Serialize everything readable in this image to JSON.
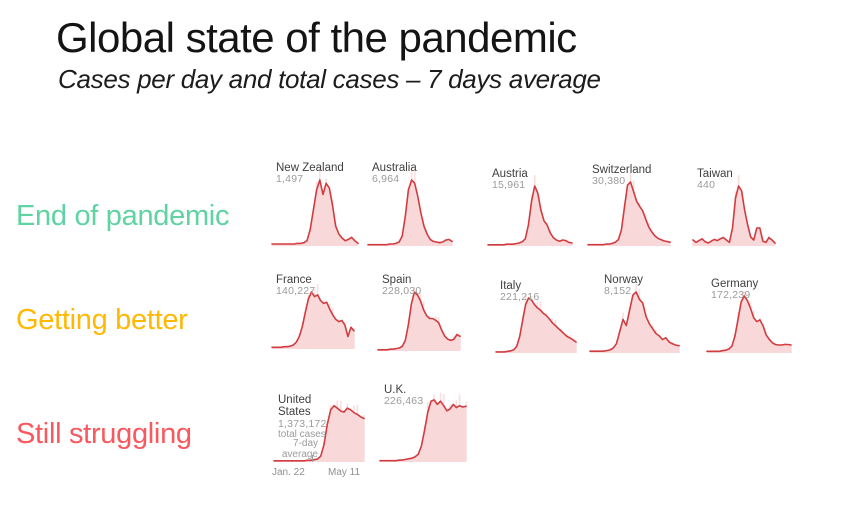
{
  "title": "Global state of the pandemic",
  "subtitle": "Cases per day and total cases – 7 days average",
  "colors": {
    "title_text": "#141414",
    "line": "#d13c40",
    "fill": "#f8d8d8",
    "bars": "#f6c3c5",
    "name_text": "#3f3f3f",
    "value_text": "#9b9b9b",
    "axis_text": "#8f8f8f",
    "category_green": "#5fd3a2",
    "category_amber": "#ffb905",
    "category_red": "#f8595e"
  },
  "categories": [
    {
      "label": "End of pandemic",
      "color": "#5fd3a2"
    },
    {
      "label": "Getting better",
      "color": "#ffb905"
    },
    {
      "label": "Still struggling",
      "color": "#f8595e"
    }
  ],
  "chart_data": {
    "type": "area",
    "title": "Cases per day and total cases – 7 days average",
    "x_axis": {
      "start": "Jan. 22",
      "end": "May 11"
    },
    "y_normalized": true,
    "legend": "small multiples of daily new cases (7-day average), value shown is total cases",
    "charts": [
      {
        "name": "New Zealand",
        "value": "1,497",
        "group": "End of pandemic",
        "points": [
          0.03,
          0.03,
          0.03,
          0.03,
          0.03,
          0.03,
          0.03,
          0.03,
          0.04,
          0.04,
          0.05,
          0.08,
          0.25,
          0.55,
          0.85,
          1.0,
          0.78,
          0.95,
          0.88,
          0.62,
          0.3,
          0.18,
          0.12,
          0.08,
          0.1,
          0.13,
          0.08,
          0.04
        ]
      },
      {
        "name": "Australia",
        "value": "6,964",
        "group": "End of pandemic",
        "points": [
          0.02,
          0.02,
          0.02,
          0.02,
          0.02,
          0.02,
          0.02,
          0.03,
          0.03,
          0.04,
          0.06,
          0.15,
          0.45,
          0.85,
          1.0,
          0.95,
          0.75,
          0.5,
          0.3,
          0.18,
          0.1,
          0.07,
          0.06,
          0.05,
          0.06,
          0.09,
          0.1,
          0.07
        ]
      },
      {
        "name": "Austria",
        "value": "15,961",
        "group": "End of pandemic",
        "points": [
          0.02,
          0.02,
          0.02,
          0.02,
          0.02,
          0.02,
          0.03,
          0.03,
          0.03,
          0.04,
          0.05,
          0.07,
          0.12,
          0.35,
          0.75,
          1.0,
          0.88,
          0.6,
          0.42,
          0.35,
          0.22,
          0.14,
          0.1,
          0.08,
          0.1,
          0.09,
          0.06,
          0.05
        ]
      },
      {
        "name": "Switzerland",
        "value": "30,380",
        "group": "End of pandemic",
        "points": [
          0.02,
          0.02,
          0.02,
          0.02,
          0.02,
          0.02,
          0.03,
          0.03,
          0.04,
          0.06,
          0.1,
          0.25,
          0.6,
          0.95,
          1.0,
          0.85,
          0.7,
          0.62,
          0.55,
          0.42,
          0.3,
          0.22,
          0.16,
          0.12,
          0.1,
          0.08,
          0.07,
          0.06
        ]
      },
      {
        "name": "Taiwan",
        "value": "440",
        "group": "End of pandemic",
        "points": [
          0.1,
          0.06,
          0.09,
          0.12,
          0.07,
          0.05,
          0.08,
          0.11,
          0.09,
          0.12,
          0.14,
          0.1,
          0.06,
          0.3,
          0.8,
          1.0,
          0.92,
          0.6,
          0.35,
          0.15,
          0.1,
          0.3,
          0.3,
          0.08,
          0.06,
          0.14,
          0.1,
          0.05
        ]
      },
      {
        "name": "France",
        "value": "140,227",
        "group": "Getting better",
        "points": [
          0.03,
          0.03,
          0.03,
          0.03,
          0.04,
          0.04,
          0.05,
          0.07,
          0.12,
          0.22,
          0.4,
          0.65,
          0.88,
          1.0,
          0.92,
          0.95,
          0.85,
          0.8,
          0.82,
          0.7,
          0.6,
          0.52,
          0.48,
          0.5,
          0.42,
          0.22,
          0.38,
          0.32
        ]
      },
      {
        "name": "Spain",
        "value": "228,030",
        "group": "Getting better",
        "points": [
          0.02,
          0.02,
          0.02,
          0.02,
          0.03,
          0.03,
          0.04,
          0.05,
          0.08,
          0.18,
          0.45,
          0.8,
          1.0,
          0.95,
          0.85,
          0.7,
          0.6,
          0.55,
          0.55,
          0.52,
          0.48,
          0.35,
          0.25,
          0.2,
          0.18,
          0.2,
          0.28,
          0.25
        ]
      },
      {
        "name": "Italy",
        "value": "221,216",
        "group": "Getting better",
        "points": [
          0.02,
          0.02,
          0.02,
          0.02,
          0.03,
          0.04,
          0.06,
          0.12,
          0.3,
          0.6,
          0.88,
          1.0,
          0.96,
          0.88,
          0.82,
          0.78,
          0.72,
          0.68,
          0.62,
          0.55,
          0.5,
          0.45,
          0.4,
          0.35,
          0.3,
          0.27,
          0.24,
          0.2
        ]
      },
      {
        "name": "Norway",
        "value": "8,152",
        "group": "Getting better",
        "points": [
          0.03,
          0.03,
          0.03,
          0.03,
          0.03,
          0.04,
          0.05,
          0.08,
          0.15,
          0.35,
          0.55,
          0.45,
          0.7,
          0.95,
          1.0,
          0.88,
          0.82,
          0.6,
          0.48,
          0.4,
          0.32,
          0.28,
          0.22,
          0.25,
          0.18,
          0.15,
          0.13,
          0.12
        ]
      },
      {
        "name": "Germany",
        "value": "172,239",
        "group": "Getting better",
        "points": [
          0.03,
          0.03,
          0.03,
          0.03,
          0.03,
          0.04,
          0.05,
          0.07,
          0.12,
          0.3,
          0.6,
          0.9,
          1.0,
          0.92,
          0.78,
          0.62,
          0.55,
          0.58,
          0.48,
          0.32,
          0.24,
          0.18,
          0.15,
          0.14,
          0.14,
          0.15,
          0.15,
          0.14
        ]
      },
      {
        "name": "United States",
        "value": "1,373,172",
        "value_caption": "total cases",
        "group": "Still struggling",
        "annotation_line1": "7-day",
        "annotation_line2": "average",
        "points": [
          0.02,
          0.02,
          0.02,
          0.02,
          0.02,
          0.02,
          0.02,
          0.02,
          0.02,
          0.02,
          0.03,
          0.03,
          0.04,
          0.05,
          0.1,
          0.3,
          0.65,
          0.9,
          0.97,
          0.93,
          0.88,
          0.86,
          0.93,
          0.9,
          0.85,
          0.82,
          0.78,
          0.75
        ]
      },
      {
        "name": "U.K.",
        "value": "226,463",
        "group": "Still struggling",
        "points": [
          0.02,
          0.02,
          0.02,
          0.02,
          0.02,
          0.02,
          0.03,
          0.03,
          0.04,
          0.05,
          0.06,
          0.08,
          0.12,
          0.25,
          0.5,
          0.78,
          0.95,
          0.97,
          0.9,
          0.95,
          0.88,
          0.8,
          0.83,
          0.9,
          0.85,
          0.88,
          0.86,
          0.87
        ]
      }
    ]
  }
}
